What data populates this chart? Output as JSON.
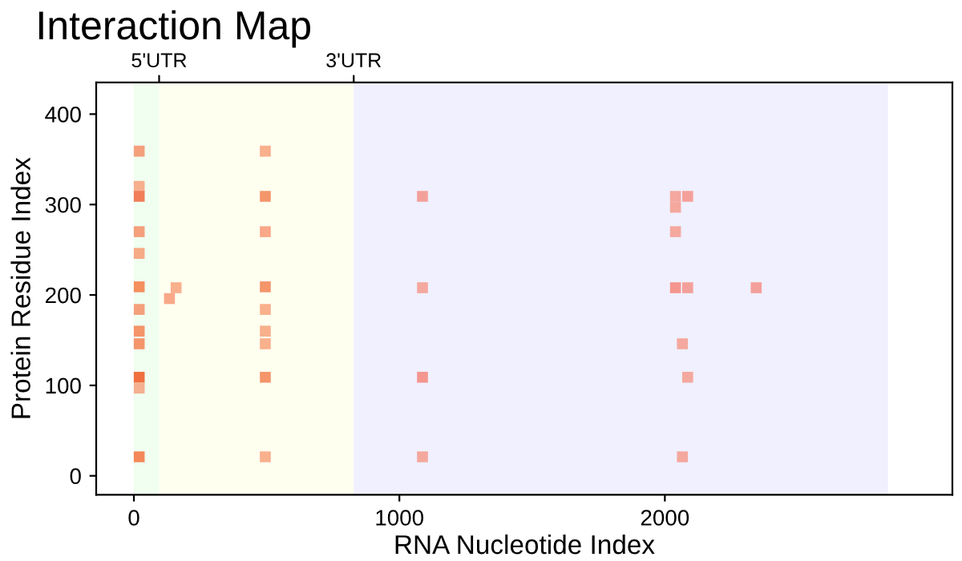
{
  "chart_data": {
    "type": "scatter",
    "title": "Interaction Map",
    "xlabel": "RNA Nucleotide Index",
    "ylabel": "Protein Residue Index",
    "xlim": [
      -142,
      3083
    ],
    "ylim": [
      -21,
      435
    ],
    "xticks": [
      0,
      1000,
      2000
    ],
    "yticks": [
      0,
      100,
      200,
      300,
      400
    ],
    "annotations": [
      {
        "text": "5'UTR",
        "x": 95,
        "y": 435
      },
      {
        "text": "3'UTR",
        "x": 828,
        "y": 435
      }
    ],
    "grid": false,
    "legend": false,
    "marker": "square",
    "bands": [
      {
        "axis": "x",
        "from": 0,
        "to": 95,
        "label": null,
        "color": "#f0fff0"
      },
      {
        "axis": "x",
        "from": 95,
        "to": 828,
        "label": null,
        "color": "#fffff0"
      },
      {
        "axis": "x",
        "from": 828,
        "to": 2840,
        "label": null,
        "color": "#f0f0ff"
      }
    ],
    "series": [
      {
        "x": [
          20,
          20,
          20,
          20,
          20,
          20,
          20,
          20,
          20,
          20,
          20,
          20,
          495,
          495,
          495,
          495,
          495,
          495,
          495,
          495,
          495,
          159,
          134,
          1087,
          1087,
          1087,
          1087,
          2040,
          2086,
          2040,
          2040,
          2040,
          2086,
          2344,
          2066,
          2086,
          2066
        ],
        "values": [
          359,
          320,
          309,
          270,
          246,
          209,
          184,
          160,
          146,
          109,
          97,
          21,
          359,
          309,
          270,
          209,
          184,
          160,
          146,
          109,
          21,
          208,
          196,
          309,
          208,
          109,
          21,
          309,
          309,
          297,
          270,
          208,
          208,
          208,
          146,
          109,
          21
        ],
        "colors": [
          "#f4a07c",
          "#f6b08e",
          "#f07d58",
          "#f4a07c",
          "#f6aa86",
          "#f4905e",
          "#f4a07c",
          "#f4956a",
          "#f4956a",
          "#f07040",
          "#f4b090",
          "#f48858",
          "#f9b08c",
          "#f4956a",
          "#f9a888",
          "#f4956a",
          "#f9b08c",
          "#f9b08c",
          "#f9b08c",
          "#f4956a",
          "#f9b08c",
          "#f9b08c",
          "#f9a888",
          "#f4a09a",
          "#f4a89e",
          "#f4968e",
          "#f4a89e",
          "#f4a89e",
          "#f4a09a",
          "#f4a89e",
          "#f4a89e",
          "#f4968e",
          "#f4a09a",
          "#f4a09a",
          "#f4a89e",
          "#f4a89e",
          "#f4a89e"
        ]
      }
    ]
  }
}
